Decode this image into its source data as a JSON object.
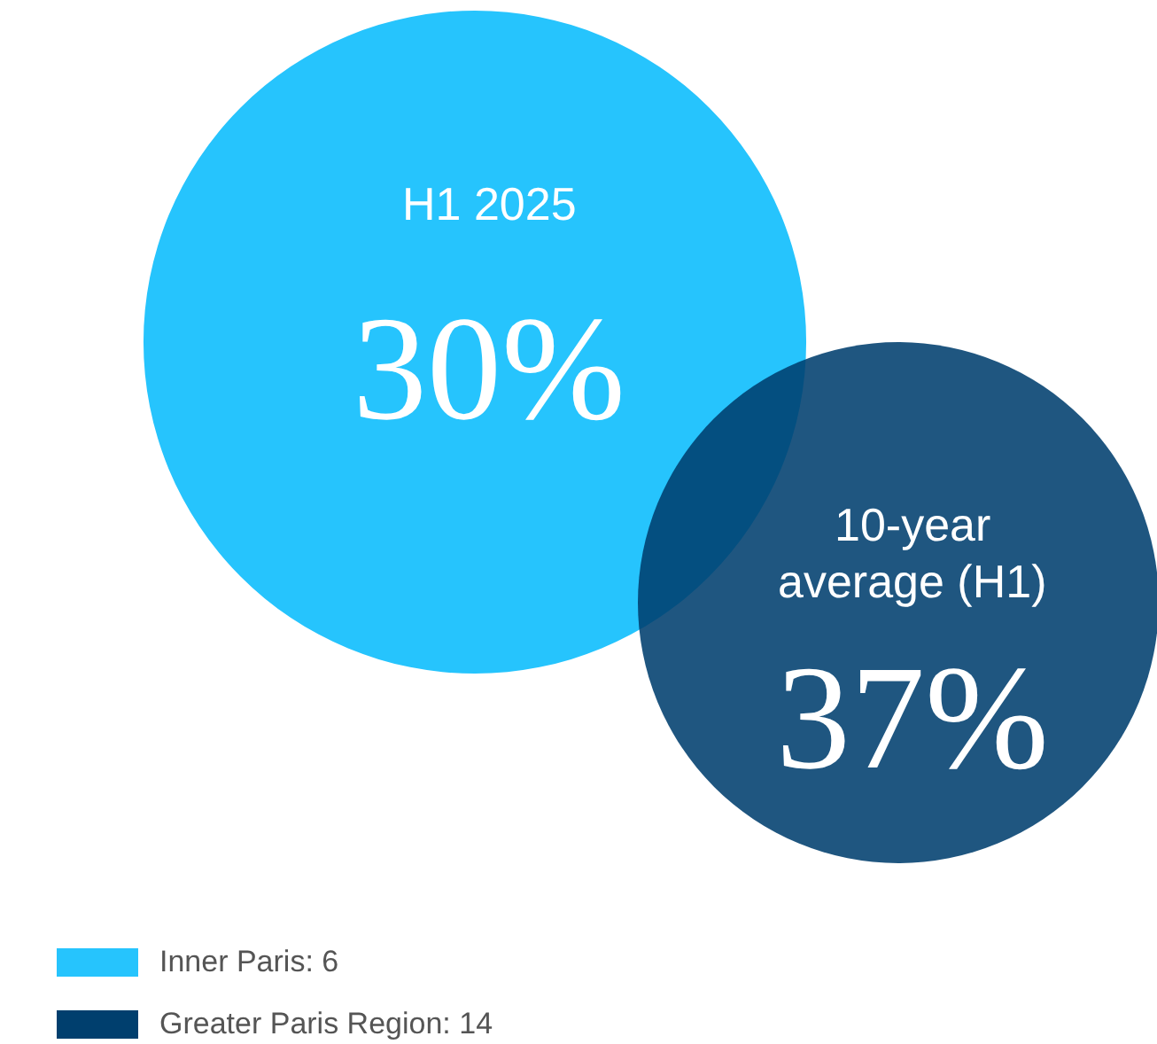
{
  "chart_data": {
    "type": "other",
    "categories": [
      "H1 2025",
      "10-year average (H1)"
    ],
    "values": [
      30,
      37
    ],
    "value_labels": [
      "30%",
      "37%"
    ],
    "colors": [
      "#26c4fd",
      "#003f6e"
    ],
    "annotations": [
      "Inner Paris: 6",
      "Greater Paris Region: 14"
    ]
  }
}
